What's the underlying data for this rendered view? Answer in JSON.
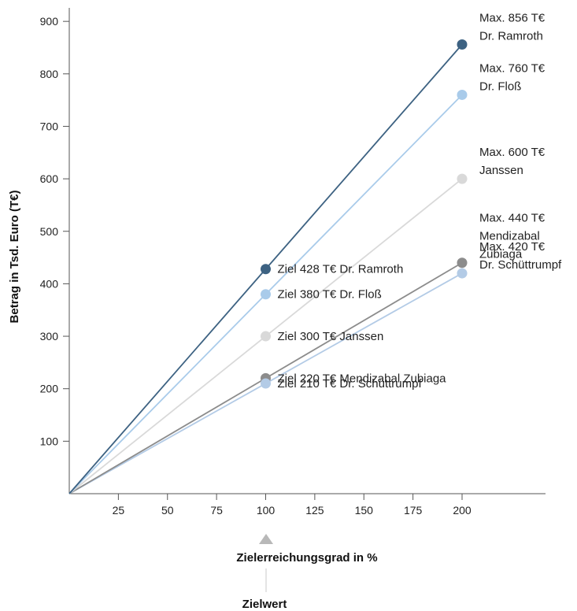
{
  "chart_data": {
    "type": "line",
    "ylabel": "Betrag in Tsd. Euro (T€)",
    "xlabel": "Zielerreichungsgrad in %",
    "target_marker_label": "Zielwert",
    "x_ticks": [
      25,
      50,
      75,
      100,
      125,
      150,
      175,
      200
    ],
    "y_ticks": [
      100,
      200,
      300,
      400,
      500,
      600,
      700,
      800,
      900
    ],
    "xlim": [
      0,
      245
    ],
    "ylim": [
      0,
      950
    ],
    "target_x": 100,
    "grid": false,
    "series": [
      {
        "color": "#3d6282",
        "x": [
          0,
          100,
          200
        ],
        "values": [
          0,
          428,
          856
        ],
        "target_label": "Ziel 428 T€ Dr. Ramroth",
        "max_label_lines": [
          "Max. 856 T€",
          "Dr. Ramroth"
        ]
      },
      {
        "color": "#a9cbea",
        "x": [
          0,
          100,
          200
        ],
        "values": [
          0,
          380,
          760
        ],
        "target_label": "Ziel 380 T€ Dr. Floß",
        "max_label_lines": [
          "Max. 760 T€",
          "Dr. Floß"
        ]
      },
      {
        "color": "#d9d9d9",
        "x": [
          0,
          100,
          200
        ],
        "values": [
          0,
          300,
          600
        ],
        "target_label": "Ziel 300 T€ Janssen",
        "max_label_lines": [
          "Max. 600 T€",
          "Janssen"
        ]
      },
      {
        "color": "#8c8c8c",
        "x": [
          0,
          100,
          200
        ],
        "values": [
          0,
          220,
          440
        ],
        "target_label": "Ziel 220 T€ Mendizabal Zubiaga",
        "max_label_lines": [
          "Max. 440 T€",
          "Mendizabal",
          "Zubiaga"
        ]
      },
      {
        "color": "#b3cbe6",
        "x": [
          0,
          100,
          200
        ],
        "values": [
          0,
          210,
          420
        ],
        "target_label": "Ziel 210 T€ Dr. Schüttrumpf",
        "max_label_lines": [
          "Max. 420 T€",
          "Dr. Schüttrumpf"
        ]
      }
    ]
  }
}
